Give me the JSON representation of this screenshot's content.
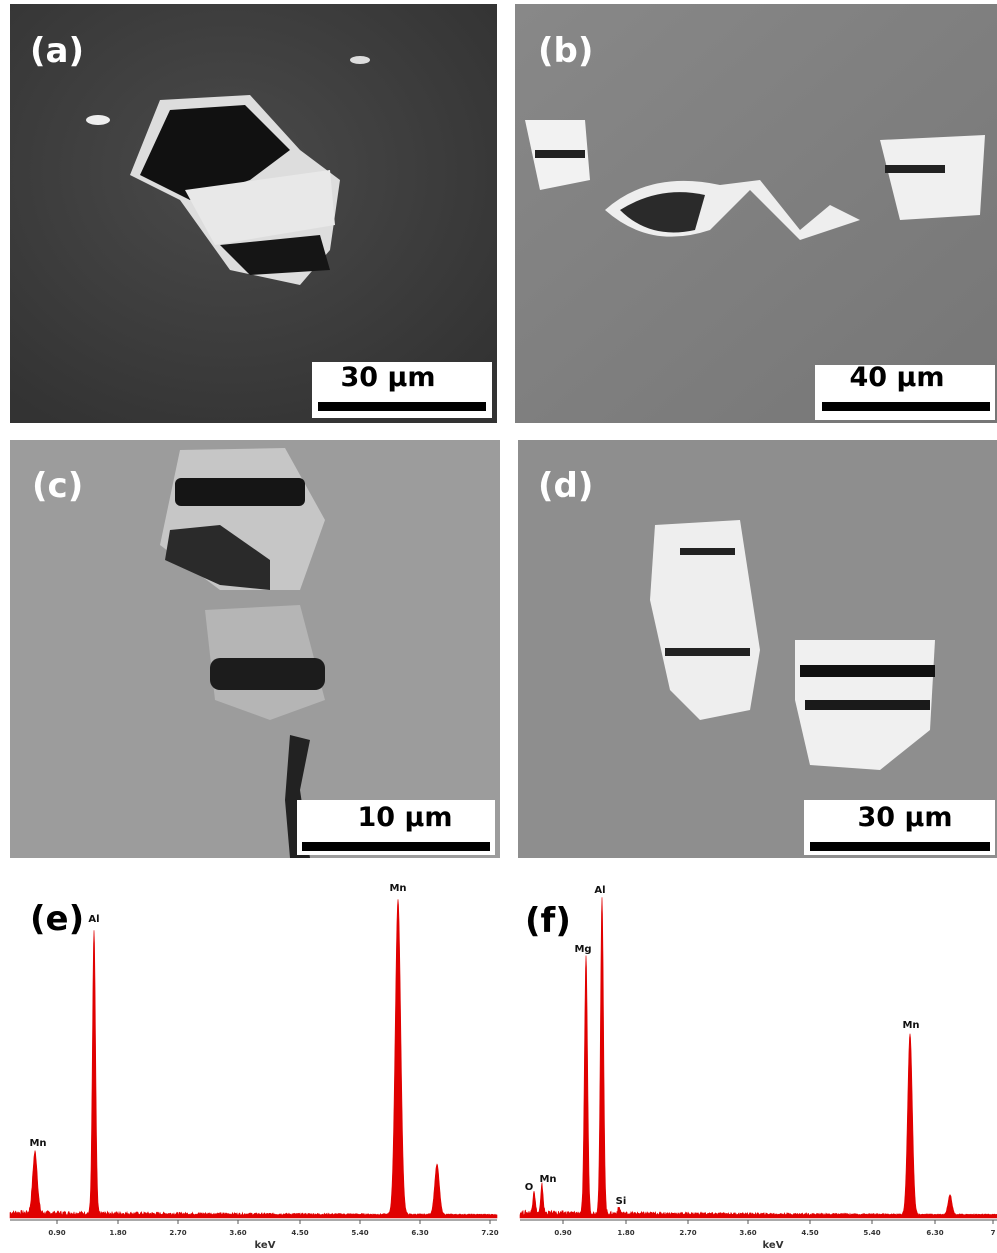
{
  "panels": [
    {
      "label": "(a)",
      "scale_bar": "30 µm"
    },
    {
      "label": "(b)",
      "scale_bar": "40 µm"
    },
    {
      "label": "(c)",
      "scale_bar": "10 µm"
    },
    {
      "label": "(d)",
      "scale_bar": "30 µm"
    }
  ],
  "spectra": [
    {
      "label": "(e)",
      "x_axis_label": "keV",
      "xticks": [
        "0.90",
        "1.80",
        "2.70",
        "3.60",
        "4.50",
        "5.40",
        "6.30",
        "7.20"
      ],
      "peaks": [
        "Mn",
        "Al",
        "Mn"
      ]
    },
    {
      "label": "(f)",
      "x_axis_label": "keV",
      "xticks": [
        "0.90",
        "1.80",
        "2.70",
        "3.60",
        "4.50",
        "5.40",
        "6.30",
        "7"
      ],
      "peaks": [
        "O",
        "Mn",
        "Mg",
        "Al",
        "Si",
        "Mn"
      ]
    }
  ]
}
